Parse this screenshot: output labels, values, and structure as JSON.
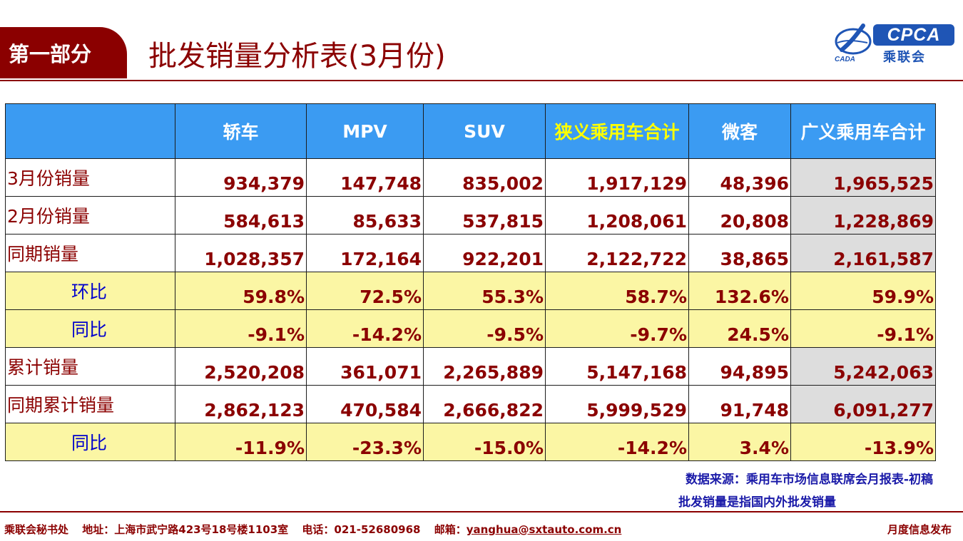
{
  "header": {
    "section_label": "第一部分",
    "title": "批发销量分析表(3月份)",
    "logo_text": "CPCA",
    "logo_cn": "乘联会",
    "logo_sub": "CADA"
  },
  "table": {
    "columns": [
      "",
      "轿车",
      "MPV",
      "SUV",
      "狭义乘用车合计",
      "微客",
      "广义乘用车合计"
    ],
    "rows": [
      {
        "label": "3月份销量",
        "values": [
          "934,379",
          "147,748",
          "835,002",
          "1,917,129",
          "48,396",
          "1,965,525"
        ]
      },
      {
        "label": "2月份销量",
        "values": [
          "584,613",
          "85,633",
          "537,815",
          "1,208,061",
          "20,808",
          "1,228,869"
        ]
      },
      {
        "label": "同期销量",
        "values": [
          "1,028,357",
          "172,164",
          "922,201",
          "2,122,722",
          "38,865",
          "2,161,587"
        ]
      },
      {
        "label": "环比",
        "values": [
          "59.8%",
          "72.5%",
          "55.3%",
          "58.7%",
          "132.6%",
          "59.9%"
        ]
      },
      {
        "label": "同比",
        "values": [
          "-9.1%",
          "-14.2%",
          "-9.5%",
          "-9.7%",
          "24.5%",
          "-9.1%"
        ]
      },
      {
        "label": "累计销量",
        "values": [
          "2,520,208",
          "361,071",
          "2,265,889",
          "5,147,168",
          "94,895",
          "5,242,063"
        ]
      },
      {
        "label": "同期累计销量",
        "values": [
          "2,862,123",
          "470,584",
          "2,666,822",
          "5,999,529",
          "91,748",
          "6,091,277"
        ]
      },
      {
        "label": "同比",
        "values": [
          "-11.9%",
          "-23.3%",
          "-15.0%",
          "-14.2%",
          "3.4%",
          "-13.9%"
        ]
      }
    ]
  },
  "notes": {
    "source": "数据来源：乘用车市场信息联席会月报表-初稿",
    "definition": "批发销量是指国内外批发销量"
  },
  "footer": {
    "org": "乘联会秘书处",
    "address": "地址：上海市武宁路423号18号楼1103室",
    "phone": "电话：021-52680968",
    "email_label": "邮箱：",
    "email": "yanghua@sxtauto.com.cn",
    "right": "月度信息发布"
  },
  "colors": {
    "brand_red": "#8b0000",
    "header_blue": "#3b9bf2",
    "highlight_yellow": "#ffff00",
    "ratio_row_bg": "#fbf6a4",
    "shaded_cell": "#dddddd",
    "note_blue": "#1a1aa8",
    "logo_blue": "#1f55b5"
  }
}
